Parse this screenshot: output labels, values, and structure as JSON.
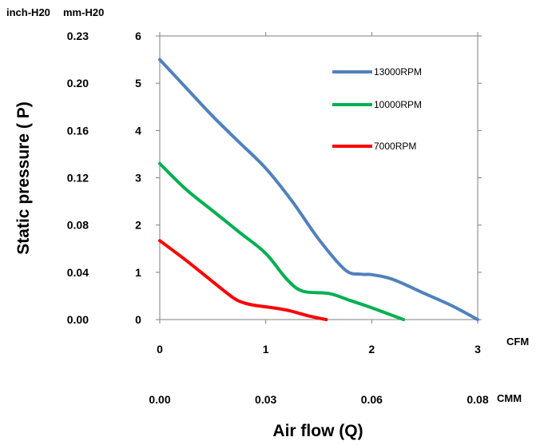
{
  "chart_data": {
    "type": "line",
    "xlabel": "Air flow (Q)",
    "ylabel": "Static  pressure ( P)",
    "xlim": [
      0,
      3
    ],
    "ylim": [
      0,
      6
    ],
    "grid": false,
    "legend_position": "top-right",
    "units": {
      "y_primary": "mm-H20",
      "y_secondary": "inch-H20",
      "x_primary": "CFM",
      "x_secondary": "CMM"
    },
    "y_ticks_primary": [
      "0",
      "1",
      "2",
      "3",
      "4",
      "5",
      "6"
    ],
    "y_ticks_secondary": [
      "0.00",
      "0.04",
      "0.08",
      "0.12",
      "0.16",
      "0.20",
      "0.23"
    ],
    "x_ticks_primary": [
      "0",
      "1",
      "2",
      "3"
    ],
    "x_ticks_secondary": [
      "0.00",
      "0.03",
      "0.06",
      "0.08"
    ],
    "series": [
      {
        "name": "13000RPM",
        "color": "#4f81bd",
        "x": [
          0,
          0.25,
          0.5,
          0.75,
          1.0,
          1.25,
          1.5,
          1.75,
          1.9,
          2.0,
          2.2,
          2.5,
          2.75,
          3.0
        ],
        "y": [
          5.5,
          4.9,
          4.3,
          3.75,
          3.2,
          2.5,
          1.7,
          1.05,
          0.96,
          0.95,
          0.85,
          0.55,
          0.3,
          0.0
        ]
      },
      {
        "name": "10000RPM",
        "color": "#00b050",
        "x": [
          0,
          0.25,
          0.5,
          0.75,
          1.0,
          1.2,
          1.35,
          1.6,
          1.8,
          2.0,
          2.3
        ],
        "y": [
          3.3,
          2.75,
          2.3,
          1.85,
          1.4,
          0.85,
          0.6,
          0.55,
          0.4,
          0.25,
          0.0
        ]
      },
      {
        "name": "7000RPM",
        "color": "#ff0000",
        "x": [
          0,
          0.25,
          0.5,
          0.7,
          0.8,
          0.9,
          1.0,
          1.2,
          1.4,
          1.57
        ],
        "y": [
          1.67,
          1.25,
          0.8,
          0.45,
          0.35,
          0.3,
          0.27,
          0.2,
          0.08,
          0.0
        ]
      }
    ]
  }
}
